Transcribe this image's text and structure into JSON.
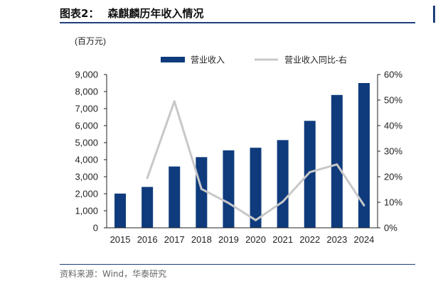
{
  "header": {
    "figure_label": "图表2：",
    "title": "森麒麟历年收入情况"
  },
  "source": "资料来源：Wind，华泰研究",
  "chart_data": {
    "type": "bar",
    "unit_label": "(百万元)",
    "categories": [
      "2015",
      "2016",
      "2017",
      "2018",
      "2019",
      "2020",
      "2021",
      "2022",
      "2023",
      "2024"
    ],
    "series": [
      {
        "name": "营业收入",
        "type": "bar",
        "axis": "left",
        "color": "#0f3b7d",
        "values": [
          2010,
          2400,
          3600,
          4150,
          4550,
          4700,
          5150,
          6280,
          7800,
          8500
        ]
      },
      {
        "name": "营业收入同比-右",
        "type": "line",
        "axis": "right",
        "color": "#c8c8c8",
        "values": [
          null,
          19.5,
          49.5,
          15.2,
          9.7,
          3.0,
          10.2,
          21.8,
          24.8,
          8.8
        ]
      }
    ],
    "ylim_left": [
      0,
      9000
    ],
    "yticks_left": [
      0,
      1000,
      2000,
      3000,
      4000,
      5000,
      6000,
      7000,
      8000,
      9000
    ],
    "ytick_labels_left": [
      "0",
      "1,000",
      "2,000",
      "3,000",
      "4,000",
      "5,000",
      "6,000",
      "7,000",
      "8,000",
      "9,000"
    ],
    "ylim_right": [
      0,
      60
    ],
    "yticks_right": [
      0,
      10,
      20,
      30,
      40,
      50,
      60
    ],
    "ytick_labels_right": [
      "0%",
      "10%",
      "20%",
      "30%",
      "40%",
      "50%",
      "60%"
    ],
    "legend_position": "top-center",
    "grid": false
  }
}
